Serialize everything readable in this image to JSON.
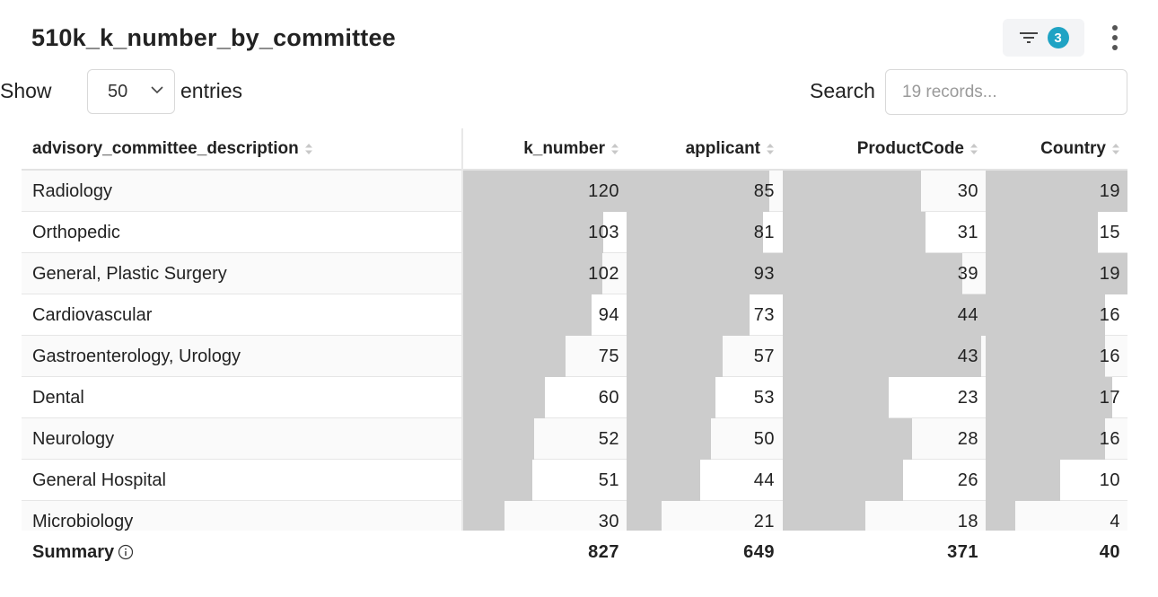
{
  "title": "510k_k_number_by_committee",
  "filter": {
    "count": "3",
    "icon": "filter-icon"
  },
  "controls": {
    "show_label": "Show",
    "page_size": "50",
    "entries_label": "entries",
    "search_label": "Search",
    "search_placeholder": "19 records..."
  },
  "columns": [
    {
      "key": "label",
      "title": "advisory_committee_description"
    },
    {
      "key": "k_number",
      "title": "k_number",
      "max": 120
    },
    {
      "key": "applicant",
      "title": "applicant",
      "max": 93
    },
    {
      "key": "ProductCode",
      "title": "ProductCode",
      "max": 44
    },
    {
      "key": "Country",
      "title": "Country",
      "max": 19
    }
  ],
  "rows": [
    {
      "label": "Radiology",
      "k_number": "120",
      "applicant": "85",
      "ProductCode": "30",
      "Country": "19"
    },
    {
      "label": "Orthopedic",
      "k_number": "103",
      "applicant": "81",
      "ProductCode": "31",
      "Country": "15"
    },
    {
      "label": "General, Plastic Surgery",
      "k_number": "102",
      "applicant": "93",
      "ProductCode": "39",
      "Country": "19"
    },
    {
      "label": "Cardiovascular",
      "k_number": "94",
      "applicant": "73",
      "ProductCode": "44",
      "Country": "16"
    },
    {
      "label": "Gastroenterology, Urology",
      "k_number": "75",
      "applicant": "57",
      "ProductCode": "43",
      "Country": "16"
    },
    {
      "label": "Dental",
      "k_number": "60",
      "applicant": "53",
      "ProductCode": "23",
      "Country": "17"
    },
    {
      "label": "Neurology",
      "k_number": "52",
      "applicant": "50",
      "ProductCode": "28",
      "Country": "16"
    },
    {
      "label": "General Hospital",
      "k_number": "51",
      "applicant": "44",
      "ProductCode": "26",
      "Country": "10"
    },
    {
      "label": "Microbiology",
      "k_number": "30",
      "applicant": "21",
      "ProductCode": "18",
      "Country": "4"
    }
  ],
  "summary": {
    "label": "Summary",
    "k_number": "827",
    "applicant": "649",
    "ProductCode": "371",
    "Country": "40"
  },
  "colors": {
    "bar": "#cccccc",
    "badge": "#1fa3c4"
  }
}
